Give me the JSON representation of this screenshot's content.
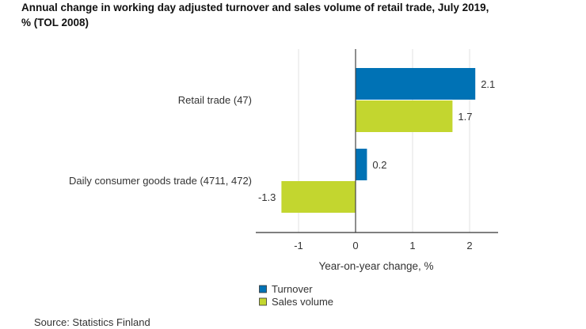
{
  "chart_data": {
    "type": "bar",
    "orientation": "horizontal",
    "title_lines": [
      "Annual change in working day adjusted turnover and sales volume of retail trade, July 2019,",
      "% (TOL 2008)"
    ],
    "categories": [
      "Retail trade (47)",
      "Daily consumer goods trade (4711, 472)"
    ],
    "series": [
      {
        "name": "Turnover",
        "values": [
          2.1,
          0.2
        ],
        "color": "#0072b5"
      },
      {
        "name": "Sales volume",
        "values": [
          1.7,
          -1.3
        ],
        "color": "#c3d62f"
      }
    ],
    "value_labels": [
      [
        "2.1",
        "0.2"
      ],
      [
        "1.7",
        "-1.3"
      ]
    ],
    "xlabel": "Year-on-year change, %",
    "xlim": [
      -1.75,
      2.5
    ],
    "xticks": [
      -1,
      0,
      1,
      2
    ],
    "xtick_labels": [
      "-1",
      "0",
      "1",
      "2"
    ],
    "grid": "vertical",
    "legend": "bottom",
    "source": "Source: Statistics Finland"
  }
}
